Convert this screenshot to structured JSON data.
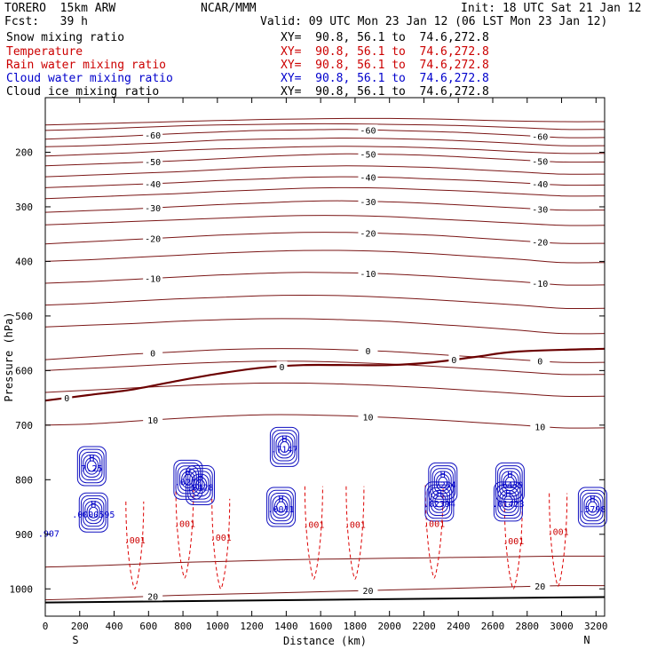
{
  "header": {
    "model": "TORERO  15km ARW",
    "org": "NCAR/MMM",
    "init": "Init: 18 UTC Sat 21 Jan 12",
    "fcst": "Fcst:   39 h",
    "valid": "Valid: 09 UTC Mon 23 Jan 12 (06 LST Mon 23 Jan 12)"
  },
  "fields": [
    {
      "label": "Snow mixing ratio",
      "color": "#000000",
      "xy": "XY=  90.8, 56.1 to  74.6,272.8",
      "xy_color": "#000000"
    },
    {
      "label": "Temperature",
      "color": "#cc0000",
      "xy": "XY=  90.8, 56.1 to  74.6,272.8",
      "xy_color": "#cc0000"
    },
    {
      "label": "Rain water mixing ratio",
      "color": "#cc0000",
      "xy": "XY=  90.8, 56.1 to  74.6,272.8",
      "xy_color": "#cc0000"
    },
    {
      "label": "Cloud water mixing ratio",
      "color": "#0000cc",
      "xy": "XY=  90.8, 56.1 to  74.6,272.8",
      "xy_color": "#0000cc"
    },
    {
      "label": "Cloud ice mixing ratio",
      "color": "#000000",
      "xy": "XY=  90.8, 56.1 to  74.6,272.8",
      "xy_color": "#000000"
    }
  ],
  "chart_data": {
    "type": "line",
    "xlabel": "Distance (km)",
    "ylabel": "Pressure (hPa)",
    "xlim": [
      0,
      3250
    ],
    "ylim": [
      1050,
      100
    ],
    "x_ticks": [
      "0",
      "200",
      "400",
      "600",
      "800",
      "1000",
      "1200",
      "1400",
      "1600",
      "1800",
      "2000",
      "2200",
      "2400",
      "2600",
      "2800",
      "3000",
      "3200"
    ],
    "y_ticks": [
      "200",
      "300",
      "400",
      "500",
      "600",
      "700",
      "800",
      "900",
      "1000"
    ],
    "x_end_labels": {
      "left": "S",
      "right": "N"
    },
    "isotherms": [
      {
        "level": -65,
        "label": "",
        "p": [
          150,
          148,
          146,
          144,
          142,
          140,
          139,
          138,
          138,
          139,
          141,
          143,
          144
        ]
      },
      {
        "level": -62,
        "label": "",
        "p": [
          160,
          158,
          155,
          152,
          150,
          149,
          148,
          148,
          149,
          150,
          152,
          155,
          158
        ]
      },
      {
        "level": -60,
        "label": "-60",
        "p": [
          176,
          173,
          170,
          166,
          163,
          160,
          159,
          158,
          160,
          162,
          165,
          169,
          173
        ]
      },
      {
        "level": -58,
        "label": "",
        "p": [
          190,
          188,
          185,
          182,
          178,
          176,
          175,
          174,
          175,
          177,
          180,
          184,
          188
        ]
      },
      {
        "level": -55,
        "label": "",
        "p": [
          207,
          204,
          201,
          197,
          194,
          192,
          190,
          189,
          190,
          192,
          195,
          199,
          202
        ]
      },
      {
        "level": -50,
        "label": "-50",
        "p": [
          225,
          222,
          219,
          216,
          212,
          208,
          205,
          203,
          204,
          206,
          210,
          214,
          218
        ]
      },
      {
        "level": -45,
        "label": "",
        "p": [
          245,
          242,
          239,
          236,
          232,
          228,
          226,
          225,
          226,
          228,
          232,
          236,
          240
        ]
      },
      {
        "level": -40,
        "label": "-40",
        "p": [
          265,
          262,
          259,
          256,
          252,
          249,
          246,
          245,
          246,
          249,
          252,
          256,
          260
        ]
      },
      {
        "level": -35,
        "label": "",
        "p": [
          285,
          282,
          279,
          276,
          272,
          269,
          266,
          265,
          266,
          269,
          272,
          276,
          280
        ]
      },
      {
        "level": -30,
        "label": "-30",
        "p": [
          310,
          307,
          304,
          300,
          296,
          293,
          290,
          289,
          291,
          294,
          298,
          302,
          306
        ]
      },
      {
        "level": -25,
        "label": "",
        "p": [
          333,
          330,
          327,
          324,
          321,
          318,
          316,
          316,
          318,
          322,
          326,
          330,
          334
        ]
      },
      {
        "level": -20,
        "label": "-20",
        "p": [
          368,
          364,
          360,
          356,
          352,
          349,
          347,
          347,
          349,
          352,
          357,
          362,
          367
        ]
      },
      {
        "level": -15,
        "label": "",
        "p": [
          400,
          397,
          393,
          389,
          385,
          382,
          380,
          380,
          382,
          386,
          391,
          396,
          402
        ]
      },
      {
        "level": -10,
        "label": "-10",
        "p": [
          440,
          437,
          433,
          429,
          425,
          422,
          420,
          421,
          423,
          427,
          432,
          437,
          443
        ]
      },
      {
        "level": -7,
        "label": "",
        "p": [
          480,
          477,
          473,
          469,
          466,
          463,
          462,
          463,
          466,
          470,
          475,
          480,
          486
        ]
      },
      {
        "level": -3,
        "label": "",
        "p": [
          520,
          517,
          514,
          510,
          507,
          505,
          505,
          507,
          510,
          515,
          520,
          526,
          532
        ]
      },
      {
        "level": 0,
        "label": "0",
        "p": [
          580,
          575,
          570,
          566,
          562,
          560,
          560,
          562,
          565,
          570,
          575,
          580,
          585
        ]
      },
      {
        "level": 2,
        "label": "",
        "p": [
          600,
          596,
          592,
          588,
          585,
          583,
          583,
          585,
          588,
          592,
          597,
          602,
          607
        ]
      },
      {
        "level": 5,
        "label": "",
        "p": [
          640,
          636,
          632,
          628,
          625,
          623,
          623,
          625,
          628,
          632,
          637,
          642,
          647
        ]
      },
      {
        "level": 10,
        "label": "10",
        "p": [
          700,
          698,
          693,
          688,
          684,
          681,
          681,
          683,
          686,
          690,
          695,
          700,
          705
        ]
      },
      {
        "level": 15,
        "label": "",
        "p": [
          960,
          958,
          955,
          952,
          950,
          948,
          946,
          945,
          944,
          943,
          942,
          941,
          940
        ]
      },
      {
        "level": 20,
        "label": "20",
        "p": [
          1020,
          1018,
          1015,
          1012,
          1010,
          1008,
          1006,
          1004,
          1002,
          1000,
          998,
          996,
          994
        ]
      }
    ],
    "isotherm_x": [
      0,
      250,
      500,
      750,
      1000,
      1250,
      1500,
      1750,
      2000,
      2250,
      2500,
      2750,
      3000
    ],
    "freezing_level": {
      "level": 0,
      "x": [
        0,
        250,
        500,
        750,
        1000,
        1250,
        1500,
        1750,
        2000,
        2250,
        2500,
        2750,
        3250
      ],
      "p": [
        655,
        645,
        635,
        620,
        606,
        595,
        590,
        590,
        590,
        585,
        575,
        565,
        560
      ]
    },
    "surface": {
      "x": [
        0,
        3250
      ],
      "p": [
        1025,
        1015
      ]
    },
    "cloud_water_maxima": [
      {
        "label": "H",
        "value": ".0000595",
        "x": 280,
        "p": 860
      },
      {
        "label": "H",
        "value": "7.25",
        "x": 270,
        "p": 775
      },
      {
        "label": "H",
        "value": ".0212",
        "x": 830,
        "p": 800
      },
      {
        "label": "H",
        "value": ".0428",
        "x": 900,
        "p": 810
      },
      {
        "label": "H",
        "value": ".7147",
        "x": 1390,
        "p": 740
      },
      {
        "label": "H",
        "value": ".0011",
        "x": 1370,
        "p": 850
      },
      {
        "label": "H",
        "value": ".7254",
        "x": 2310,
        "p": 805
      },
      {
        "label": "H",
        "value": ".02394",
        "x": 2290,
        "p": 840
      },
      {
        "label": "H",
        "value": ".6439",
        "x": 2700,
        "p": 805
      },
      {
        "label": "H",
        "value": ".01423",
        "x": 2690,
        "p": 840
      },
      {
        "label": "H",
        "value": ".5798",
        "x": 3180,
        "p": 850
      },
      {
        "label": "",
        "value": ".907",
        "x": 20,
        "p": 895
      }
    ],
    "rain_water_labels": [
      {
        "value": ".001",
        "x": 520,
        "p": 910
      },
      {
        "value": ".001",
        "x": 810,
        "p": 880
      },
      {
        "value": ".001",
        "x": 1020,
        "p": 905
      },
      {
        "value": ".001",
        "x": 1560,
        "p": 882
      },
      {
        "value": ".001",
        "x": 1800,
        "p": 882
      },
      {
        "value": ".001",
        "x": 2260,
        "p": 880
      },
      {
        "value": ".001",
        "x": 2720,
        "p": 912
      },
      {
        "value": ".001",
        "x": 2980,
        "p": 895
      }
    ]
  }
}
